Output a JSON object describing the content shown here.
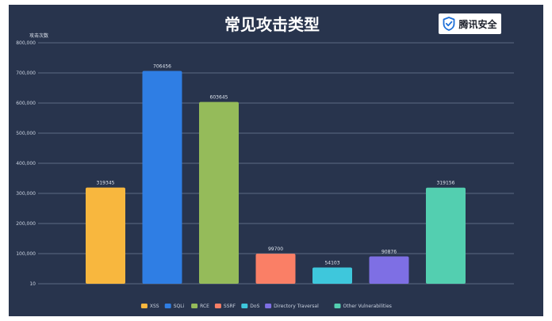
{
  "logo": {
    "text": "腾讯安全",
    "icon": "shield-check-icon"
  },
  "chart_data": {
    "type": "bar",
    "title": "常见攻击类型",
    "ylabel": "攻击次数",
    "xlabel": "",
    "categories": [
      "XSS",
      "SQLi",
      "RCE",
      "SSRF",
      "DoS",
      "Directory Traversal",
      "Other Vulnerabilities"
    ],
    "values": [
      319345,
      706456,
      603645,
      99700,
      54103,
      90876,
      319156
    ],
    "value_labels": [
      "319345",
      "706456",
      "603645",
      "99700",
      "54103",
      "90876",
      "319156"
    ],
    "colors": [
      "#f8b73e",
      "#2f7ee4",
      "#95bb5a",
      "#fa7f66",
      "#3ec7dc",
      "#7e6fe4",
      "#53cfb0"
    ],
    "ylim": [
      10,
      800000
    ],
    "yticks": [
      10,
      100000,
      200000,
      300000,
      400000,
      500000,
      600000,
      700000,
      800000
    ],
    "ytick_labels": [
      "10",
      "100,000",
      "200,000",
      "300,000",
      "400,000",
      "500,000",
      "600,000",
      "700,000",
      "800,000"
    ],
    "grid": true,
    "legend_position": "bottom"
  },
  "colors": {
    "background": "#28344d",
    "gridline": "#6f7c95",
    "text": "#c9d1df"
  }
}
